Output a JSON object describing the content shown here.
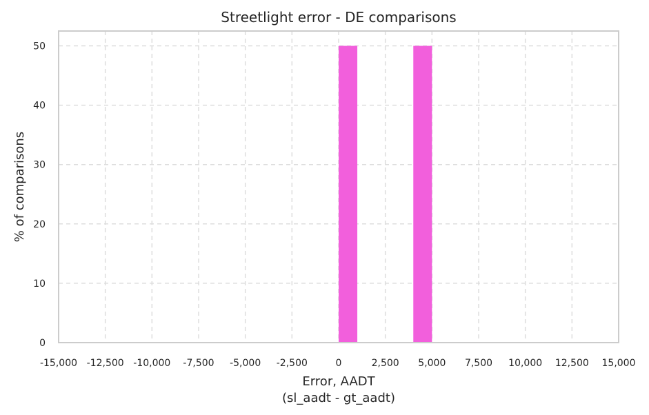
{
  "chart_data": {
    "type": "bar",
    "title": "Streetlight error - DE comparisons",
    "xlabel_lines": [
      "Error, AADT",
      "(sl_aadt - gt_aadt)"
    ],
    "ylabel": "% of comparisons",
    "xlim": [
      -15000,
      15000
    ],
    "ylim": [
      0,
      52.5
    ],
    "xticks": [
      -15000,
      -12500,
      -10000,
      -7500,
      -5000,
      -2500,
      0,
      2500,
      5000,
      7500,
      10000,
      12500,
      15000
    ],
    "xtick_labels": [
      "-15,000",
      "-12,500",
      "-10,000",
      "-7,500",
      "-5,000",
      "-2,500",
      "0",
      "2,500",
      "5,000",
      "7,500",
      "10,000",
      "12,500",
      "15,000"
    ],
    "yticks": [
      0,
      10,
      20,
      30,
      40,
      50
    ],
    "ytick_labels": [
      "0",
      "10",
      "20",
      "30",
      "40",
      "50"
    ],
    "grid": true,
    "bar_color": "#f25fdc",
    "bars": [
      {
        "x0": 0,
        "x1": 1000,
        "value": 50
      },
      {
        "x0": 4000,
        "x1": 5000,
        "value": 50
      }
    ]
  }
}
